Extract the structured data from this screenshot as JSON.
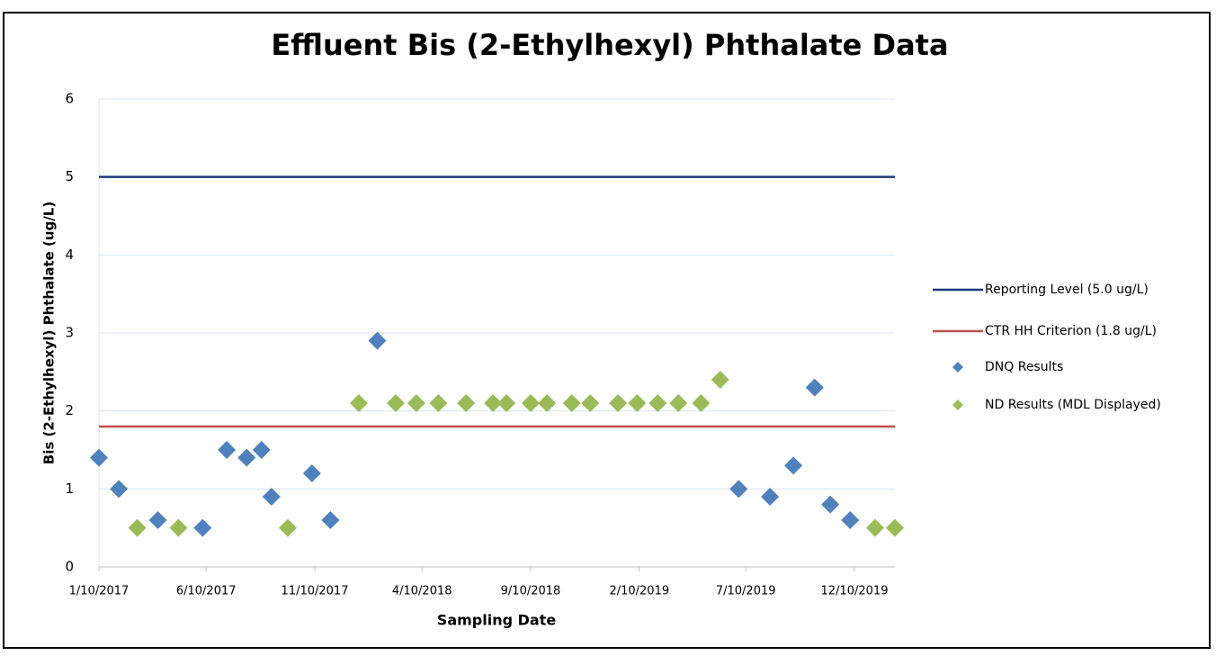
{
  "chart_data": {
    "type": "scatter",
    "title": "Effluent Bis (2-Ethylhexyl) Phthalate Data",
    "x_label": "Sampling Date",
    "y_label": "Bis (2-Ethylhexyl) Phthalate (ug/L)",
    "xlim": [
      "1/10/2017",
      "2/5/2020"
    ],
    "xticks": [
      "1/10/2017",
      "6/10/2017",
      "11/10/2017",
      "4/10/2018",
      "9/10/2018",
      "2/10/2019",
      "7/10/2019",
      "12/10/2019"
    ],
    "ylim": [
      0,
      6
    ],
    "yticks": [
      0,
      1,
      2,
      3,
      4,
      5,
      6
    ],
    "grid": true,
    "legend": "right",
    "series": [
      {
        "name": "Reporting Level (5.0 ug/L)",
        "type": "line",
        "color": "#1f3a7a",
        "x": [
          "1/10/2017",
          "2/5/2020"
        ],
        "values": [
          5.0,
          5.0
        ]
      },
      {
        "name": "CTR HH Criterion (1.8 ug/L)",
        "type": "line",
        "color": "#c0504d",
        "x": [
          "1/10/2017",
          "2/5/2020"
        ],
        "values": [
          1.8,
          1.8
        ]
      },
      {
        "name": "DNQ Results",
        "type": "scatter",
        "color": "#4f81bd",
        "x": [
          "1/10/2017",
          "2/7/2017",
          "4/3/2017",
          "6/5/2017",
          "7/9/2017",
          "8/6/2017",
          "8/27/2017",
          "9/10/2017",
          "11/6/2017",
          "12/2/2017",
          "2/6/2018",
          "6/30/2019",
          "8/13/2019",
          "9/15/2019",
          "10/15/2019",
          "11/6/2019",
          "12/4/2019"
        ],
        "values": [
          1.4,
          1.0,
          0.6,
          0.5,
          1.5,
          1.4,
          1.5,
          0.9,
          1.2,
          0.6,
          2.9,
          1.0,
          0.9,
          1.3,
          2.3,
          0.8,
          0.6
        ]
      },
      {
        "name": "ND Results (MDL Displayed)",
        "type": "scatter",
        "color": "#9bbb59",
        "x": [
          "3/5/2017",
          "5/2/2017",
          "10/3/2017",
          "1/11/2018",
          "3/4/2018",
          "4/2/2018",
          "5/3/2018",
          "6/11/2018",
          "7/19/2018",
          "8/7/2018",
          "9/10/2018",
          "10/3/2018",
          "11/7/2018",
          "12/3/2018",
          "1/11/2019",
          "2/7/2019",
          "3/8/2019",
          "4/6/2019",
          "5/8/2019",
          "6/4/2019",
          "1/8/2020",
          "2/5/2020"
        ],
        "values": [
          0.5,
          0.5,
          0.5,
          2.1,
          2.1,
          2.1,
          2.1,
          2.1,
          2.1,
          2.1,
          2.1,
          2.1,
          2.1,
          2.1,
          2.1,
          2.1,
          2.1,
          2.1,
          2.1,
          2.4,
          0.5,
          0.5
        ]
      }
    ]
  }
}
